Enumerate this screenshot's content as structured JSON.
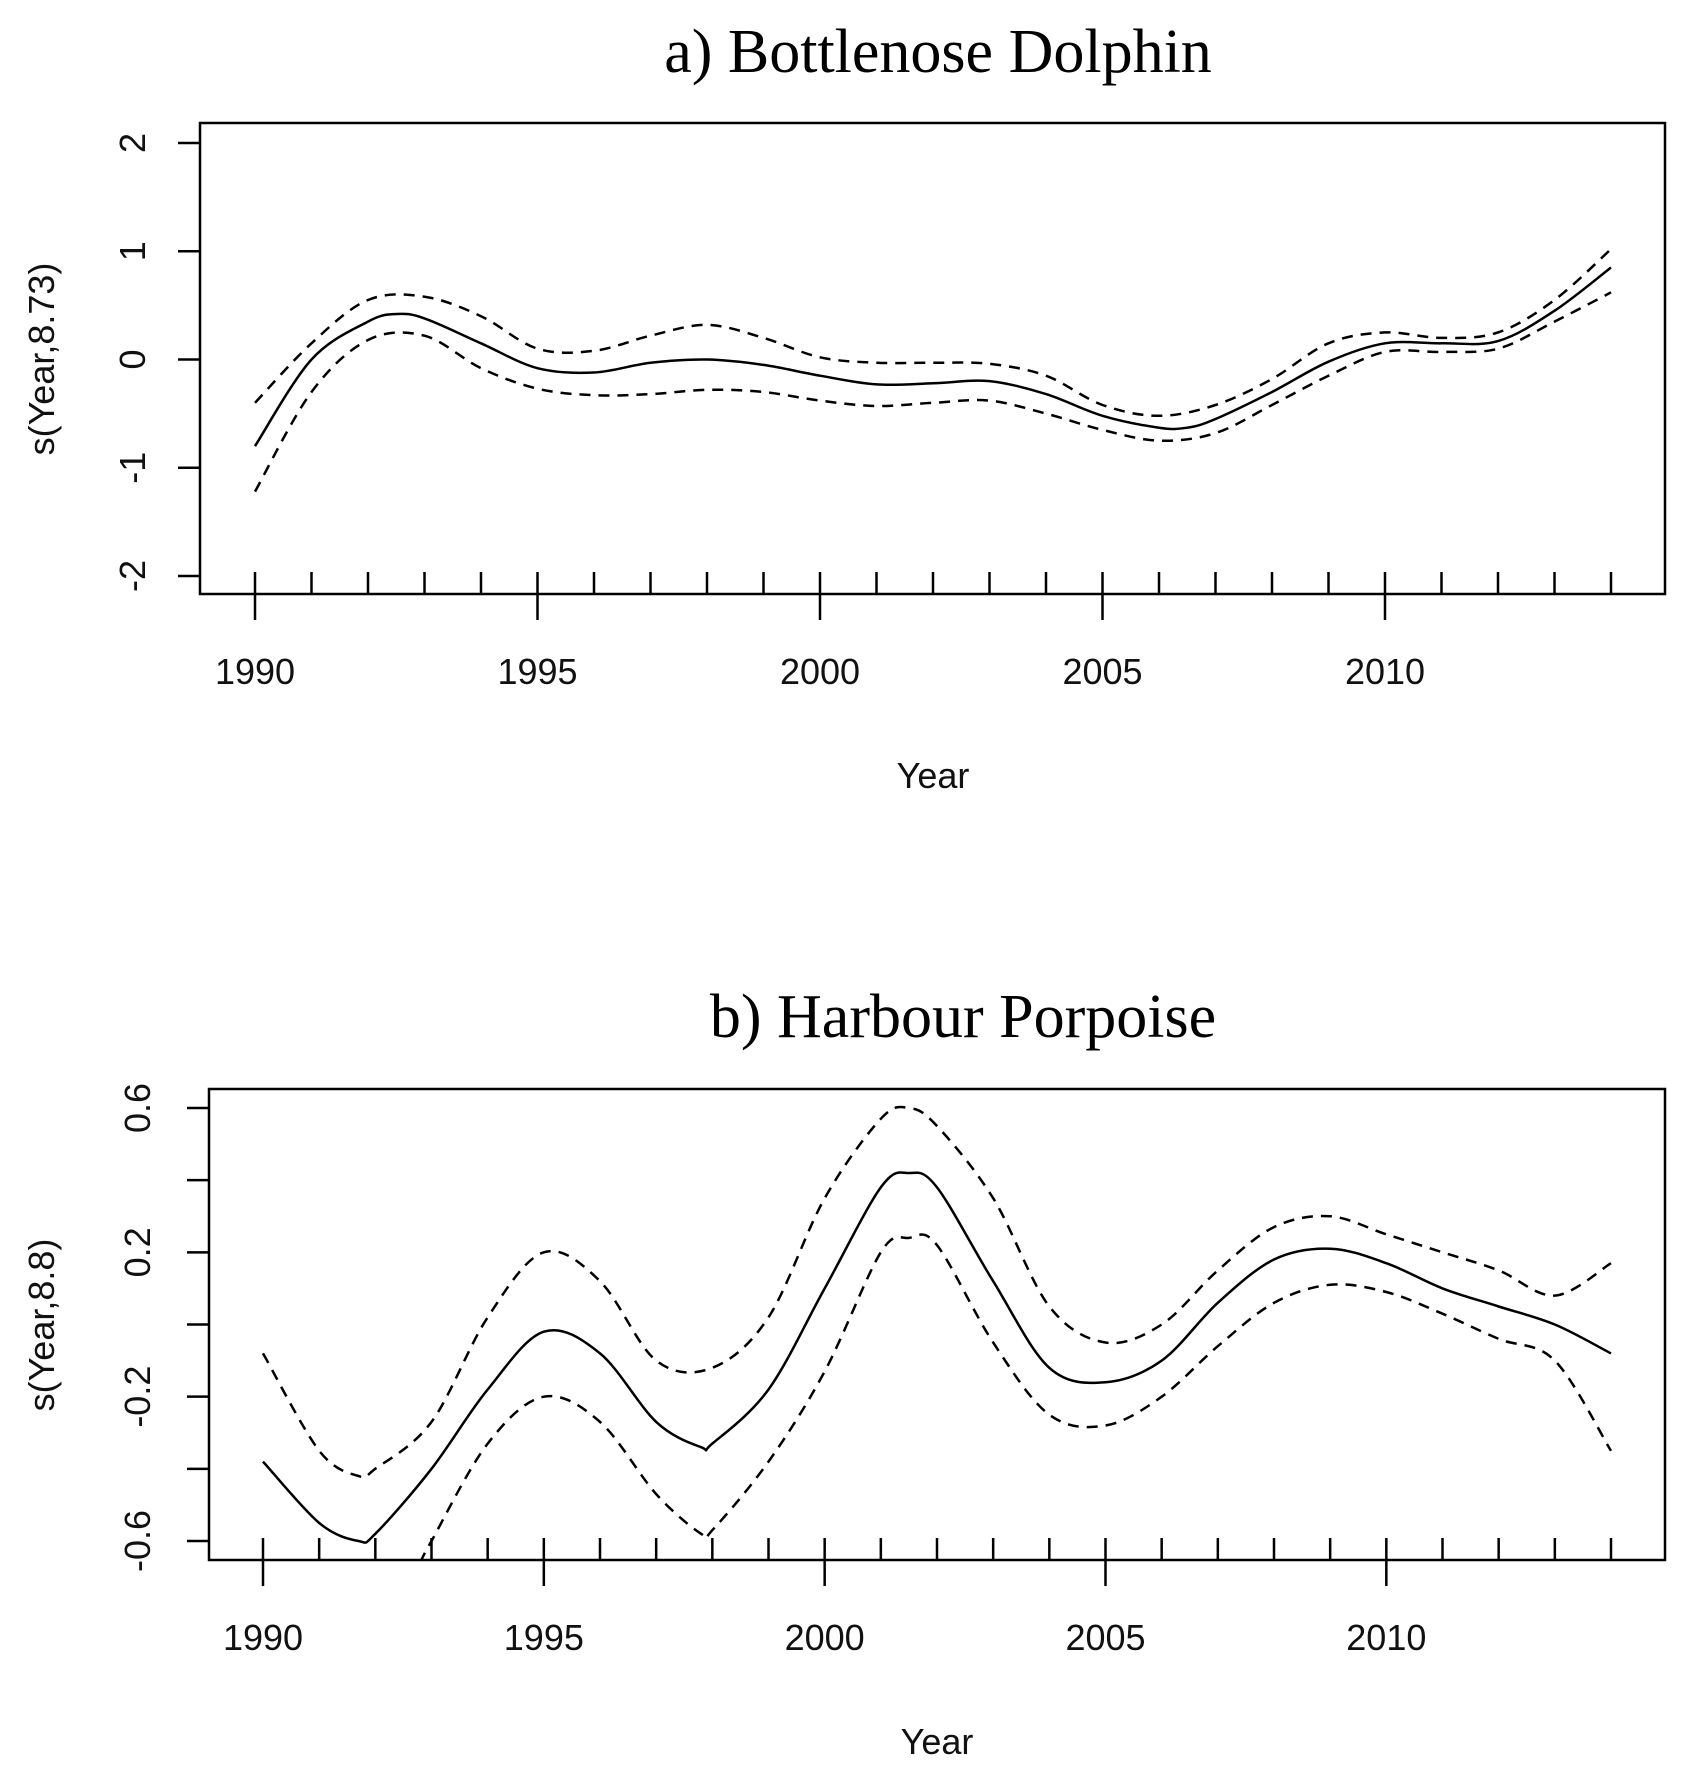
{
  "chart_data": [
    {
      "type": "line",
      "title": "a) Bottlenose Dolphin",
      "xlabel": "Year",
      "ylabel": "s(Year,8.73)",
      "xlim": [
        1990,
        2014
      ],
      "ylim": [
        -2.15,
        2.2
      ],
      "xticks": [
        1990,
        1995,
        2000,
        2005,
        2010
      ],
      "yticks": [
        -2,
        -1,
        0,
        1,
        2
      ],
      "ytick_labels": [
        "-2",
        "-1",
        "0",
        "1",
        "2"
      ],
      "grid": false,
      "series": [
        {
          "name": "fit",
          "style": "solid",
          "x": [
            1990,
            1991,
            1992,
            1992.5,
            1993,
            1994,
            1995,
            1996,
            1997,
            1998,
            1999,
            2000,
            2001,
            2002,
            2003,
            2004,
            2005,
            2006,
            2006.5,
            2007,
            2008,
            2009,
            2010,
            2011,
            2012,
            2013,
            2014
          ],
          "y": [
            -0.8,
            0.0,
            0.35,
            0.42,
            0.38,
            0.15,
            -0.08,
            -0.12,
            -0.03,
            0.0,
            -0.05,
            -0.15,
            -0.23,
            -0.22,
            -0.2,
            -0.32,
            -0.52,
            -0.63,
            -0.63,
            -0.55,
            -0.3,
            -0.02,
            0.15,
            0.15,
            0.17,
            0.45,
            0.85
          ]
        },
        {
          "name": "upper",
          "style": "dashed",
          "x": [
            1990,
            1991,
            1992,
            1993,
            1994,
            1995,
            1996,
            1997,
            1998,
            1999,
            2000,
            2001,
            2002,
            2003,
            2004,
            2005,
            2006,
            2007,
            2008,
            2009,
            2010,
            2011,
            2012,
            2013,
            2014
          ],
          "y": [
            -0.4,
            0.15,
            0.55,
            0.58,
            0.4,
            0.1,
            0.08,
            0.22,
            0.32,
            0.2,
            0.02,
            -0.03,
            -0.03,
            -0.04,
            -0.15,
            -0.42,
            -0.52,
            -0.42,
            -0.18,
            0.15,
            0.25,
            0.2,
            0.25,
            0.55,
            1.02
          ]
        },
        {
          "name": "lower",
          "style": "dashed",
          "x": [
            1990,
            1991,
            1992,
            1993,
            1994,
            1995,
            1996,
            1997,
            1998,
            1999,
            2000,
            2001,
            2002,
            2003,
            2004,
            2005,
            2006,
            2007,
            2008,
            2009,
            2010,
            2011,
            2012,
            2013,
            2014
          ],
          "y": [
            -1.22,
            -0.3,
            0.18,
            0.22,
            -0.08,
            -0.27,
            -0.33,
            -0.32,
            -0.28,
            -0.3,
            -0.38,
            -0.43,
            -0.4,
            -0.38,
            -0.5,
            -0.65,
            -0.75,
            -0.68,
            -0.42,
            -0.15,
            0.07,
            0.07,
            0.1,
            0.35,
            0.62
          ]
        }
      ]
    },
    {
      "type": "line",
      "title": "b) Harbour Porpoise",
      "xlabel": "Year",
      "ylabel": "s(Year,8.8)",
      "xlim": [
        1990,
        2014
      ],
      "ylim": [
        -0.65,
        0.65
      ],
      "xticks": [
        1990,
        1995,
        2000,
        2005,
        2010
      ],
      "yticks": [
        -0.6,
        -0.4,
        -0.2,
        0,
        0.2,
        0.4,
        0.6
      ],
      "ytick_labels": [
        "-0.6",
        "",
        "-0.2",
        "",
        "0.2",
        "",
        "0.6"
      ],
      "grid": false,
      "series": [
        {
          "name": "fit",
          "style": "solid",
          "x": [
            1990,
            1991,
            1991.7,
            1992,
            1993,
            1994,
            1995,
            1996,
            1997,
            1997.8,
            1998,
            1999,
            2000,
            2001,
            2001.5,
            2002,
            2003,
            2004,
            2005,
            2006,
            2007,
            2008,
            2009,
            2010,
            2011,
            2012,
            2013,
            2014
          ],
          "y": [
            -0.38,
            -0.55,
            -0.6,
            -0.58,
            -0.4,
            -0.18,
            -0.02,
            -0.08,
            -0.27,
            -0.34,
            -0.33,
            -0.18,
            0.1,
            0.38,
            0.42,
            0.38,
            0.12,
            -0.12,
            -0.16,
            -0.1,
            0.06,
            0.18,
            0.21,
            0.17,
            0.1,
            0.05,
            0.0,
            -0.08
          ]
        },
        {
          "name": "upper",
          "style": "dashed",
          "x": [
            1990,
            1991,
            1991.7,
            1992,
            1993,
            1994,
            1995,
            1996,
            1997,
            1998,
            1999,
            2000,
            2001,
            2001.5,
            2002,
            2003,
            2004,
            2005,
            2006,
            2007,
            2008,
            2009,
            2010,
            2011,
            2012,
            2013,
            2014
          ],
          "y": [
            -0.08,
            -0.35,
            -0.42,
            -0.4,
            -0.27,
            0.02,
            0.2,
            0.12,
            -0.1,
            -0.12,
            0.02,
            0.35,
            0.57,
            0.6,
            0.55,
            0.35,
            0.05,
            -0.05,
            0.0,
            0.15,
            0.27,
            0.3,
            0.25,
            0.2,
            0.15,
            0.08,
            0.17
          ]
        },
        {
          "name": "lower",
          "style": "dashed",
          "x": [
            1992.8,
            1993,
            1994,
            1995,
            1996,
            1997,
            1997.8,
            1998,
            1999,
            2000,
            2001,
            2001.5,
            2002,
            2003,
            2004,
            2005,
            2006,
            2007,
            2008,
            2009,
            2010,
            2011,
            2012,
            2013,
            2014
          ],
          "y": [
            -0.66,
            -0.6,
            -0.33,
            -0.2,
            -0.27,
            -0.47,
            -0.58,
            -0.57,
            -0.38,
            -0.13,
            0.2,
            0.24,
            0.22,
            -0.05,
            -0.25,
            -0.28,
            -0.2,
            -0.06,
            0.06,
            0.11,
            0.09,
            0.03,
            -0.04,
            -0.1,
            -0.35
          ]
        }
      ]
    }
  ]
}
